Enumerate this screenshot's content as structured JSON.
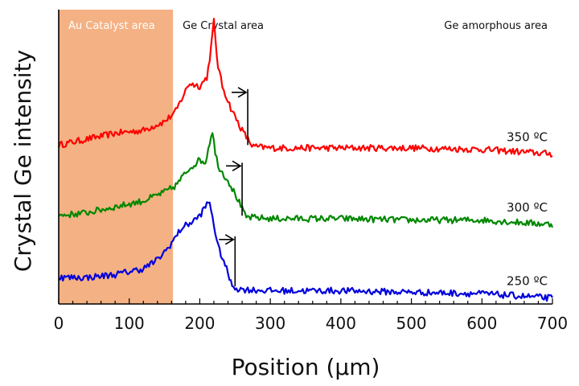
{
  "chart_data": {
    "type": "line",
    "title": "",
    "xlabel": "Position (μm)",
    "ylabel": "Crystal Ge intensity",
    "xlim": [
      0,
      700
    ],
    "ylim": [
      0,
      10
    ],
    "x_ticks": [
      0,
      100,
      200,
      300,
      400,
      500,
      600,
      700
    ],
    "y_tick_labels": false,
    "grid": false,
    "legend": "none",
    "regions": [
      {
        "label": "Au Catalyst area",
        "x_range": [
          0,
          162
        ],
        "color": "#f4b183"
      },
      {
        "label": "Ge Crystal area",
        "x_range": [
          162,
          300
        ],
        "color": "#ffffff"
      },
      {
        "label": "Ge amorphous area",
        "x_range": [
          300,
          700
        ],
        "color": "#ffffff"
      }
    ],
    "series": [
      {
        "name": "350 ºC",
        "color": "#ff0000",
        "x": [
          0,
          40,
          80,
          120,
          150,
          165,
          185,
          200,
          210,
          215,
          220,
          225,
          232,
          245,
          260,
          275,
          300,
          400,
          500,
          600,
          700
        ],
        "y": [
          5.4,
          5.6,
          5.8,
          5.9,
          6.2,
          6.5,
          7.5,
          7.4,
          7.7,
          8.5,
          9.6,
          8.2,
          7.4,
          6.6,
          5.9,
          5.35,
          5.3,
          5.3,
          5.3,
          5.25,
          5.1
        ],
        "marker_x": 268,
        "marker_y_range": [
          5.4,
          7.3
        ]
      },
      {
        "name": "300 ºC",
        "color": "#008800",
        "x": [
          0,
          40,
          80,
          120,
          150,
          165,
          185,
          200,
          208,
          213,
          218,
          222,
          228,
          240,
          255,
          265,
          300,
          400,
          500,
          600,
          700
        ],
        "y": [
          3.0,
          3.1,
          3.3,
          3.5,
          3.8,
          4.0,
          4.6,
          4.9,
          4.8,
          5.4,
          5.9,
          5.1,
          4.6,
          4.2,
          3.5,
          2.95,
          2.9,
          2.9,
          2.85,
          2.85,
          2.7
        ],
        "marker_x": 260,
        "marker_y_range": [
          3.0,
          4.8
        ]
      },
      {
        "name": "250 ºC",
        "color": "#0000dd",
        "x": [
          0,
          40,
          80,
          120,
          140,
          155,
          175,
          190,
          200,
          208,
          213,
          218,
          225,
          235,
          245,
          255,
          300,
          400,
          500,
          600,
          700
        ],
        "y": [
          0.9,
          0.9,
          1.0,
          1.2,
          1.5,
          1.9,
          2.6,
          2.8,
          3.0,
          3.3,
          3.5,
          3.0,
          2.0,
          1.4,
          0.65,
          0.5,
          0.45,
          0.45,
          0.4,
          0.35,
          0.2
        ],
        "marker_x": 250,
        "marker_y_range": [
          0.6,
          2.3
        ]
      }
    ]
  }
}
